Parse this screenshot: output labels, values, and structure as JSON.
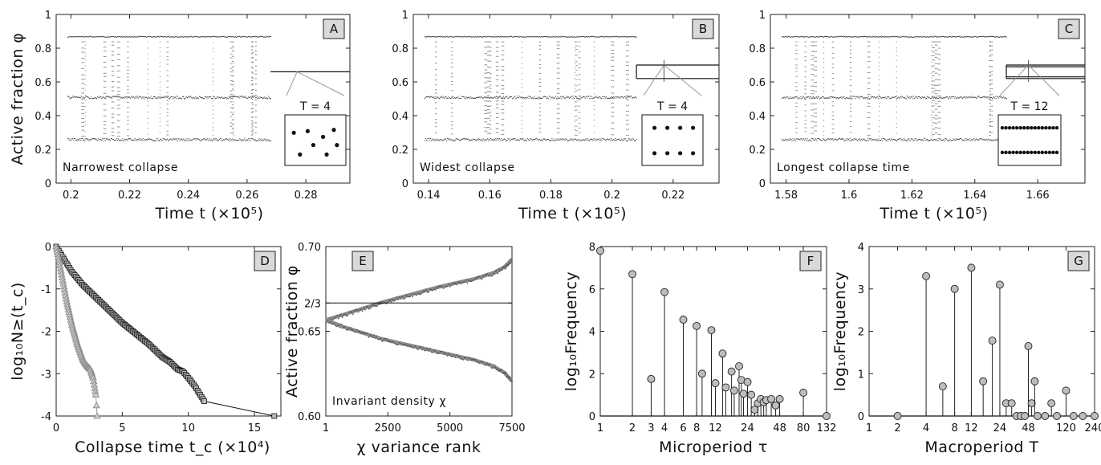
{
  "chart_data": [
    {
      "panel": "A",
      "type": "scatter",
      "xlabel": "Time t (×10⁵)",
      "ylabel": "Active fraction φ",
      "xlim": [
        0.195,
        0.295
      ],
      "ylim": [
        0,
        1
      ],
      "xticks": [
        0.2,
        0.22,
        0.24,
        0.26,
        0.28
      ],
      "yticks": [
        0,
        0.2,
        0.4,
        0.6,
        0.8,
        1
      ],
      "bands": [
        0.87,
        0.51,
        0.26
      ],
      "transient_end": 0.268,
      "collapse_levels": [
        0.66
      ],
      "note": "Narrowest collapse",
      "inset": {
        "label": "T = 4",
        "points": [
          [
            0.2,
            0.15
          ],
          [
            0.72,
            0.15
          ],
          [
            0.46,
            0.38
          ],
          [
            0.92,
            0.38
          ],
          [
            0.65,
            0.58
          ],
          [
            0.08,
            0.68
          ],
          [
            0.35,
            0.72
          ],
          [
            0.86,
            0.75
          ]
        ]
      }
    },
    {
      "panel": "B",
      "type": "scatter",
      "xlabel": "Time t (×10⁵)",
      "ylabel": "",
      "xlim": [
        0.135,
        0.235
      ],
      "ylim": [
        0,
        1
      ],
      "xticks": [
        0.14,
        0.16,
        0.18,
        0.2,
        0.22
      ],
      "yticks": [
        0,
        0.2,
        0.4,
        0.6,
        0.8,
        1
      ],
      "bands": [
        0.87,
        0.51,
        0.26
      ],
      "transient_end": 0.208,
      "collapse_levels": [
        0.7,
        0.62
      ],
      "note": "Widest collapse",
      "inset": {
        "label": "T = 4",
        "points": [
          [
            0.15,
            0.18
          ],
          [
            0.4,
            0.18
          ],
          [
            0.65,
            0.18
          ],
          [
            0.9,
            0.18
          ],
          [
            0.15,
            0.8
          ],
          [
            0.4,
            0.8
          ],
          [
            0.65,
            0.8
          ],
          [
            0.9,
            0.8
          ]
        ]
      }
    },
    {
      "panel": "C",
      "type": "scatter",
      "xlabel": "Time t (×10⁵)",
      "ylabel": "",
      "xlim": [
        1.575,
        1.675
      ],
      "ylim": [
        0,
        1
      ],
      "xticks": [
        1.58,
        1.6,
        1.62,
        1.64,
        1.66
      ],
      "yticks": [
        0,
        0.2,
        0.4,
        0.6,
        0.8,
        1
      ],
      "bands": [
        0.87,
        0.51,
        0.26
      ],
      "transient_end": 1.65,
      "collapse_levels": [
        0.7,
        0.69,
        0.63,
        0.62
      ],
      "note": "Longest collapse time",
      "inset": {
        "label": "T = 12",
        "rows": [
          0.2,
          0.8
        ],
        "count": 16
      }
    },
    {
      "panel": "D",
      "type": "line",
      "xlabel": "Collapse time t_c (×10⁴)",
      "ylabel": "log₁₀N≥(t_c)",
      "xlim": [
        0,
        17
      ],
      "ylim": [
        -4,
        0
      ],
      "xticks": [
        0,
        5,
        10,
        15
      ],
      "yticks": [
        0,
        -1,
        -2,
        -3,
        -4
      ],
      "series": [
        {
          "marker": "square",
          "color": "#111111",
          "x": [
            0,
            0.3,
            0.7,
            1.2,
            2,
            3,
            4,
            5,
            6,
            7,
            8,
            8.6,
            9.2,
            9.6,
            10,
            10.5,
            11.2,
            16.5
          ],
          "y": [
            0,
            -0.15,
            -0.35,
            -0.6,
            -0.9,
            -1.2,
            -1.5,
            -1.8,
            -2.05,
            -2.3,
            -2.6,
            -2.72,
            -2.9,
            -2.95,
            -3.1,
            -3.3,
            -3.65,
            -4
          ]
        },
        {
          "marker": "triangle",
          "color": "#999999",
          "x": [
            0,
            0.2,
            0.5,
            0.8,
            1.2,
            1.6,
            2,
            2.3,
            2.6,
            2.8,
            3,
            3.1
          ],
          "y": [
            0,
            -0.3,
            -0.8,
            -1.3,
            -1.85,
            -2.3,
            -2.65,
            -2.8,
            -2.9,
            -3.1,
            -3.5,
            -4
          ]
        }
      ]
    },
    {
      "panel": "E",
      "type": "line",
      "xlabel": "χ variance rank",
      "ylabel": "Active fraction φ",
      "xlim": [
        1,
        7500
      ],
      "ylim": [
        0.6,
        0.7
      ],
      "xticks": [
        1,
        2500,
        5000,
        7500
      ],
      "ytick_labels": [
        "0.60",
        "0.65",
        "2/3",
        "0.70"
      ],
      "ytick_values": [
        0.6,
        0.65,
        0.6667,
        0.7
      ],
      "reference_line": 0.6667,
      "note": "Invariant density χ",
      "series": [
        {
          "color": "#777777",
          "x": [
            1,
            750,
            1500,
            2250,
            3000,
            3750,
            4500,
            5250,
            6000,
            6750,
            7200,
            7500
          ],
          "y": [
            0.6567,
            0.66,
            0.6635,
            0.667,
            0.67,
            0.673,
            0.676,
            0.6785,
            0.681,
            0.6845,
            0.688,
            0.6925
          ]
        },
        {
          "color": "#777777",
          "x": [
            1,
            750,
            1500,
            2250,
            3000,
            3750,
            4500,
            5250,
            6000,
            6750,
            7200,
            7500
          ],
          "y": [
            0.6567,
            0.6525,
            0.649,
            0.6455,
            0.643,
            0.6405,
            0.638,
            0.6355,
            0.633,
            0.6295,
            0.6255,
            0.6205
          ]
        }
      ]
    },
    {
      "panel": "F",
      "type": "bar",
      "xlabel": "Microperiod τ",
      "ylabel": "log₁₀Frequency",
      "ylim": [
        0,
        8
      ],
      "yticks": [
        0,
        2,
        4,
        6,
        8
      ],
      "xtick_labels": [
        "1",
        "2",
        "3",
        "4",
        "6",
        "8",
        "12",
        "24",
        "48",
        "80",
        "132"
      ],
      "x": [
        1,
        2,
        3,
        4,
        6,
        8,
        9,
        11,
        12,
        14,
        15,
        17,
        18,
        20,
        21,
        22,
        24,
        26,
        28,
        30,
        32,
        34,
        36,
        40,
        44,
        48,
        80,
        132
      ],
      "values": [
        7.8,
        6.7,
        1.75,
        5.85,
        4.55,
        4.25,
        2.0,
        4.05,
        1.55,
        2.95,
        1.35,
        2.1,
        1.2,
        2.35,
        1.7,
        1.05,
        1.6,
        1.0,
        0.3,
        0.6,
        0.8,
        0.65,
        0.75,
        0.8,
        0.5,
        0.8,
        1.1,
        0
      ]
    },
    {
      "panel": "G",
      "type": "bar",
      "xlabel": "Macroperiod T",
      "ylabel": "log₁₀Frequency",
      "ylim": [
        0,
        4
      ],
      "yticks": [
        0,
        1,
        2,
        3,
        4
      ],
      "xtick_labels": [
        "1",
        "2",
        "4",
        "8",
        "12",
        "24",
        "48",
        "120",
        "240"
      ],
      "x": [
        2,
        4,
        6,
        8,
        12,
        16,
        20,
        24,
        28,
        32,
        36,
        40,
        44,
        48,
        52,
        56,
        60,
        72,
        84,
        96,
        120,
        144,
        180,
        240
      ],
      "values": [
        0,
        3.3,
        0.7,
        3.0,
        3.5,
        0.82,
        1.78,
        3.1,
        0.3,
        0.3,
        0,
        0,
        0,
        1.65,
        0.3,
        0.82,
        0,
        0,
        0.3,
        0,
        0.6,
        0,
        0,
        0
      ]
    }
  ]
}
